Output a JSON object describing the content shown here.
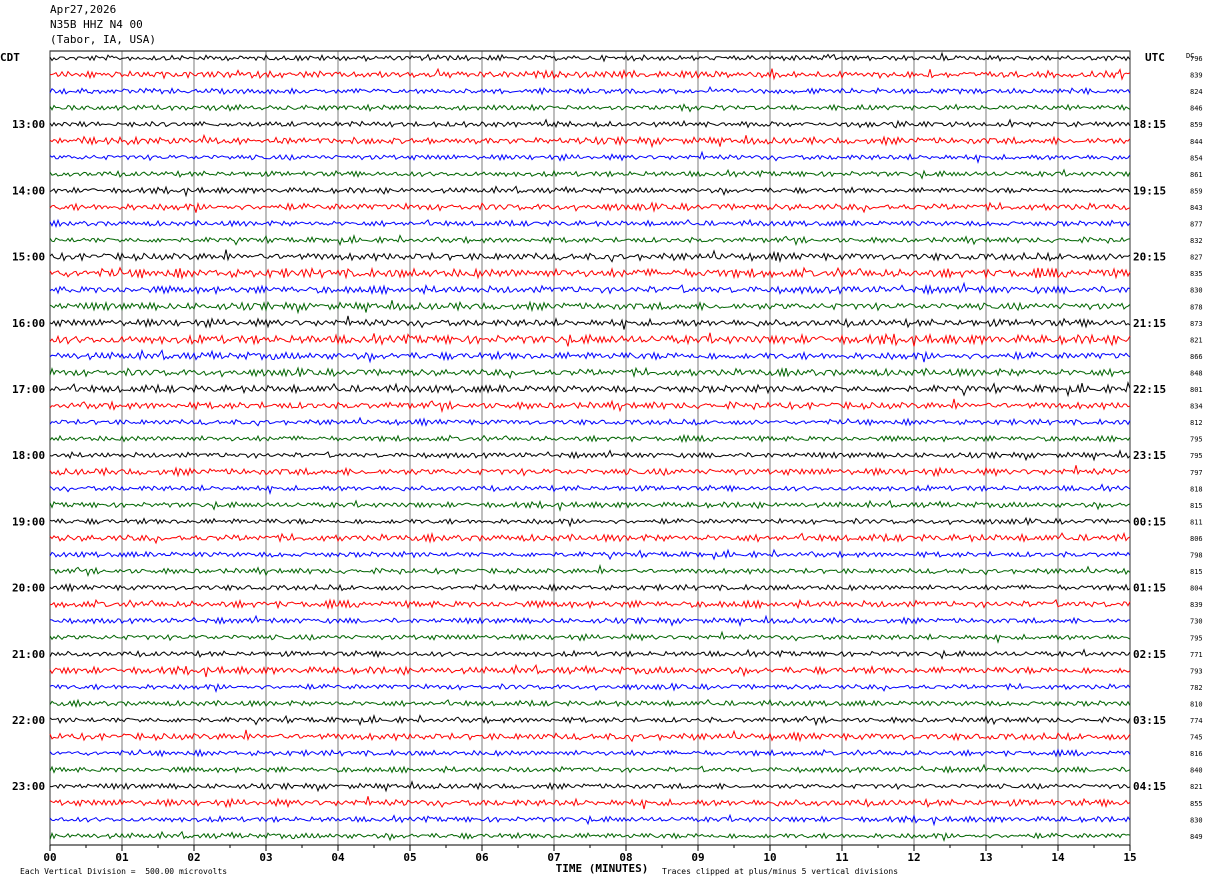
{
  "header": {
    "date": "Apr27,2026",
    "station": "N35B HHZ N4 00",
    "location": "(Tabor, IA, USA)"
  },
  "axes": {
    "left_timezone": "CDT",
    "right_timezone": "UTC",
    "dc_label": "DC",
    "x_label": "TIME (MINUTES)"
  },
  "footer": {
    "scale_note": "Each Vertical Division =  500.00 microvolts",
    "clip_note": "Traces clipped at plus/minus 5 vertical divisions"
  },
  "colors": {
    "trace_cycle": [
      "#000000",
      "#ff0000",
      "#0000ff",
      "#006400"
    ],
    "grid": "#000000"
  },
  "chart_data": {
    "type": "line",
    "title": "",
    "xlabel": "TIME (MINUTES)",
    "ylabel": "",
    "xlim": [
      0,
      15
    ],
    "x_ticks": [
      "00",
      "01",
      "02",
      "03",
      "04",
      "05",
      "06",
      "07",
      "08",
      "09",
      "10",
      "11",
      "12",
      "13",
      "14",
      "15"
    ],
    "traces_per_hour": 4,
    "trace_count": 48,
    "hour_labels_left": [
      "13:00",
      "14:00",
      "15:00",
      "16:00",
      "17:00",
      "18:00",
      "19:00",
      "20:00",
      "21:00",
      "22:00",
      "23:00"
    ],
    "hour_labels_right": [
      "18:15",
      "19:15",
      "20:15",
      "21:15",
      "22:15",
      "23:15",
      "00:15",
      "01:15",
      "02:15",
      "03:15",
      "04:15"
    ],
    "first_labeled_trace_index": 4,
    "dc_offsets": [
      796,
      839,
      824,
      846,
      859,
      844,
      854,
      861,
      859,
      843,
      877,
      832,
      827,
      835,
      830,
      878,
      873,
      821,
      866,
      848,
      801,
      834,
      812,
      795,
      795,
      797,
      818,
      815,
      811,
      806,
      798,
      815,
      804,
      839,
      730,
      795,
      771,
      793,
      782,
      810,
      774,
      745,
      816,
      840,
      821,
      855,
      830,
      849
    ],
    "grid": true
  }
}
